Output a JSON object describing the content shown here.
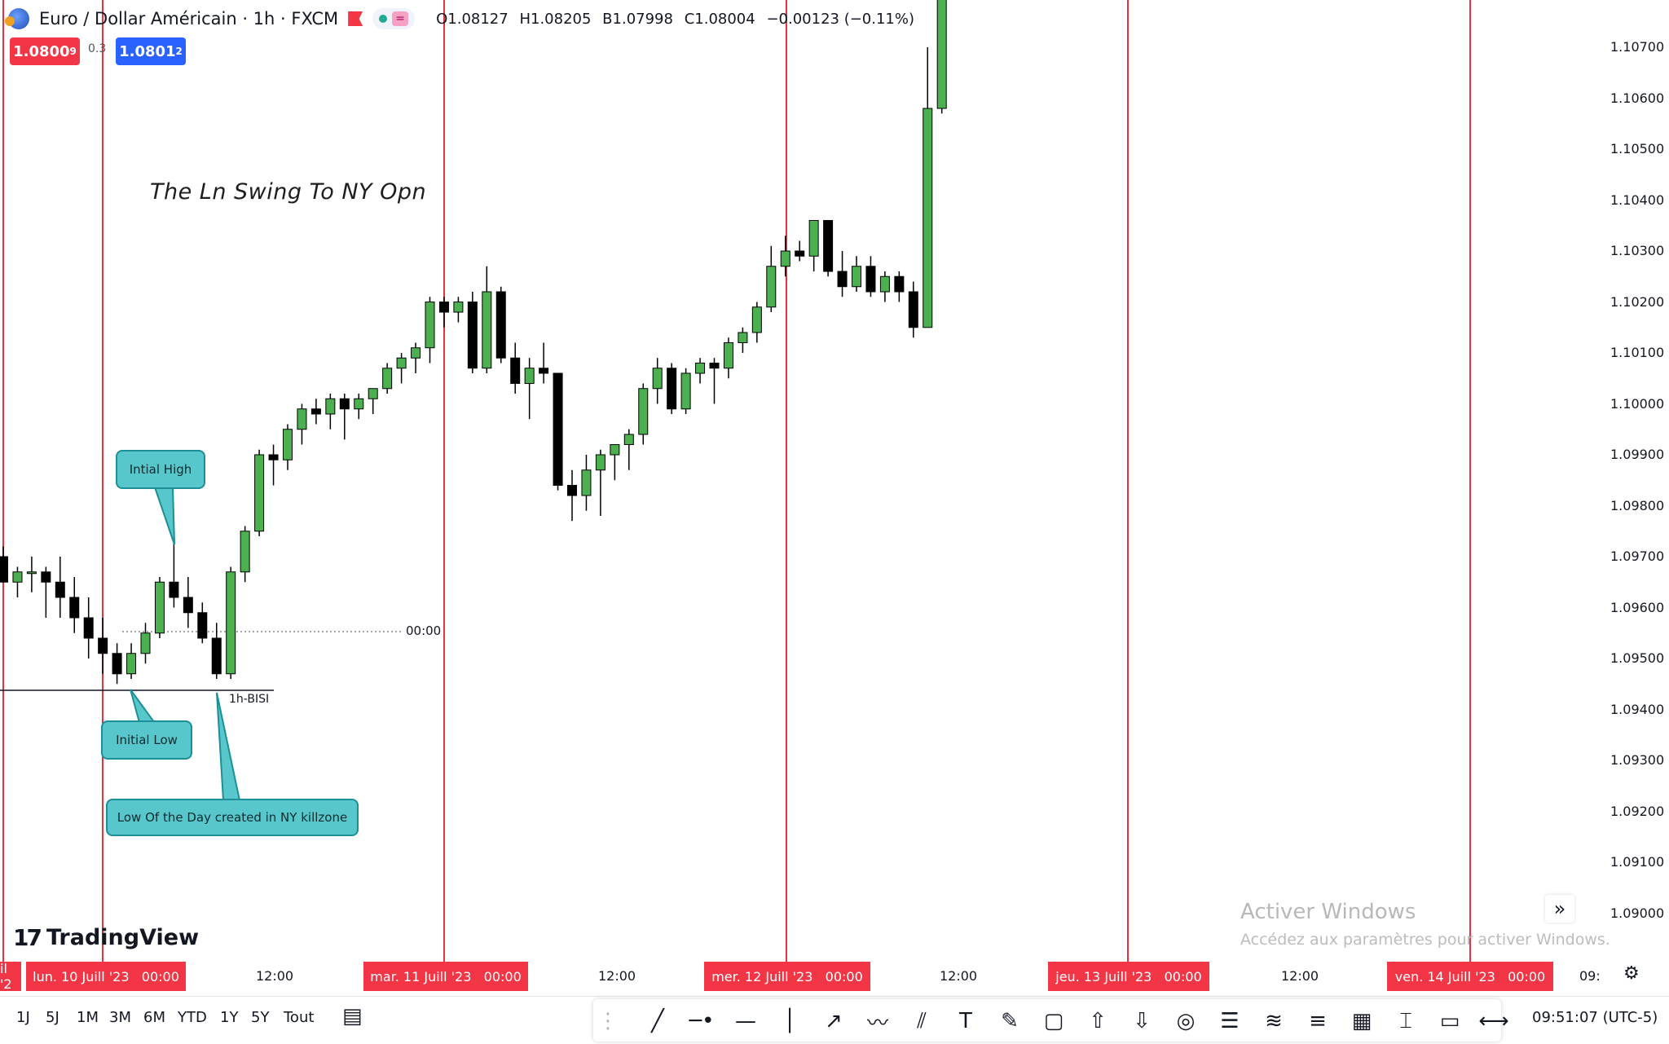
{
  "header": {
    "symbol_title": "Euro / Dollar Américain · 1h · FXCM",
    "status_badge": "=",
    "ohlc": {
      "open": "O1.08127",
      "high": "H1.08205",
      "low": "B1.07998",
      "close": "C1.08004",
      "change": "−0.00123 (−0.11%)"
    },
    "sell_price": "1.0800",
    "sell_price_sup": "9",
    "spread": "0.3",
    "buy_price": "1.0801",
    "buy_price_sup": "2"
  },
  "annotations": {
    "title": "The Ln Swing To NY Opn",
    "initial_high": "Intial High",
    "initial_low": "Initial Low",
    "low_of_day": "Low Of the Day created in NY killzone",
    "bisi_label": "1h-BISI",
    "dotted_time_label": "00:00"
  },
  "price_axis": {
    "ticks": [
      "1.10700",
      "1.10600",
      "1.10500",
      "1.10400",
      "1.10300",
      "1.10200",
      "1.10100",
      "1.10000",
      "1.09900",
      "1.09800",
      "1.09700",
      "1.09600",
      "1.09500",
      "1.09400",
      "1.09300",
      "1.09200",
      "1.09100",
      "1.09000"
    ]
  },
  "time_axis": {
    "tag_0": "il '2",
    "tag_1": "lun. 10 Juill '23   00:00",
    "time_1": "12:00",
    "tag_2": "mar. 11 Juill '23   00:00",
    "time_2": "12:00",
    "tag_3": "mer. 12 Juill '23   00:00",
    "time_3": "12:00",
    "tag_4": "jeu. 13 Juill '23   00:00",
    "time_4": "12:00",
    "tag_5": "ven. 14 Juill '23   00:00",
    "time_5": "09:"
  },
  "range_buttons": [
    "1J",
    "5J",
    "1M",
    "3M",
    "6M",
    "YTD",
    "1Y",
    "5Y",
    "Tout"
  ],
  "clock": "09:51:07 (UTC-5)",
  "branding": {
    "logo_text": "TradingView",
    "logo_mark": "17"
  },
  "watermark": {
    "title": "Activer Windows",
    "subtitle": "Accédez aux paramètres pour activer Windows."
  },
  "toolbar_icons": [
    "grip-icon",
    "trendline-icon",
    "horizontal-ray-icon",
    "horizontal-line-icon",
    "vertical-line-icon",
    "arrow-line-icon",
    "path-icon",
    "parallel-channel-icon",
    "text-icon",
    "brush-icon",
    "rectangle-icon",
    "arrow-up-icon",
    "arrow-down-icon",
    "circle-icon",
    "fib-icon",
    "pitchfork-icon",
    "gann-icon",
    "grid-icon",
    "price-range-icon",
    "callout-icon",
    "date-range-icon"
  ],
  "colors": {
    "bull": "#4caf50",
    "bear": "#000000",
    "session_line": "#e8323f",
    "callout_fill": "#58c7cc",
    "sell": "#f23645",
    "buy": "#2962ff"
  },
  "chart_data": {
    "type": "candlestick",
    "timeframe": "1h",
    "ylim": [
      1.0895,
      1.1075
    ],
    "candles": [
      {
        "o": 1.097,
        "h": 1.0972,
        "l": 1.0965,
        "c": 1.0965
      },
      {
        "o": 1.0965,
        "h": 1.0968,
        "l": 1.0962,
        "c": 1.0967
      },
      {
        "o": 1.0967,
        "h": 1.097,
        "l": 1.0963,
        "c": 1.0967
      },
      {
        "o": 1.0967,
        "h": 1.0968,
        "l": 1.0958,
        "c": 1.0965
      },
      {
        "o": 1.0965,
        "h": 1.097,
        "l": 1.0958,
        "c": 1.0962
      },
      {
        "o": 1.0962,
        "h": 1.0966,
        "l": 1.0955,
        "c": 1.0958
      },
      {
        "o": 1.0958,
        "h": 1.0962,
        "l": 1.095,
        "c": 1.0954
      },
      {
        "o": 1.0954,
        "h": 1.0958,
        "l": 1.0947,
        "c": 1.0951
      },
      {
        "o": 1.0951,
        "h": 1.0953,
        "l": 1.0945,
        "c": 1.0947
      },
      {
        "o": 1.0947,
        "h": 1.0953,
        "l": 1.0946,
        "c": 1.0951
      },
      {
        "o": 1.0951,
        "h": 1.0957,
        "l": 1.0949,
        "c": 1.0955
      },
      {
        "o": 1.0955,
        "h": 1.0966,
        "l": 1.0954,
        "c": 1.0965
      },
      {
        "o": 1.0965,
        "h": 1.0973,
        "l": 1.096,
        "c": 1.0962
      },
      {
        "o": 1.0962,
        "h": 1.0966,
        "l": 1.0956,
        "c": 1.0959
      },
      {
        "o": 1.0959,
        "h": 1.0961,
        "l": 1.0953,
        "c": 1.0954
      },
      {
        "o": 1.0954,
        "h": 1.0957,
        "l": 1.0946,
        "c": 1.0947
      },
      {
        "o": 1.0947,
        "h": 1.0968,
        "l": 1.0946,
        "c": 1.0967
      },
      {
        "o": 1.0967,
        "h": 1.0976,
        "l": 1.0965,
        "c": 1.0975
      },
      {
        "o": 1.0975,
        "h": 1.0991,
        "l": 1.0974,
        "c": 1.099
      },
      {
        "o": 1.099,
        "h": 1.0992,
        "l": 1.0984,
        "c": 1.0989
      },
      {
        "o": 1.0989,
        "h": 1.0996,
        "l": 1.0987,
        "c": 1.0995
      },
      {
        "o": 1.0995,
        "h": 1.1,
        "l": 1.0992,
        "c": 1.0999
      },
      {
        "o": 1.0999,
        "h": 1.1001,
        "l": 1.0996,
        "c": 1.0998
      },
      {
        "o": 1.0998,
        "h": 1.1002,
        "l": 1.0995,
        "c": 1.1001
      },
      {
        "o": 1.1001,
        "h": 1.1002,
        "l": 1.0993,
        "c": 1.0999
      },
      {
        "o": 1.0999,
        "h": 1.1002,
        "l": 1.0997,
        "c": 1.1001
      },
      {
        "o": 1.1001,
        "h": 1.1003,
        "l": 1.0998,
        "c": 1.1003
      },
      {
        "o": 1.1003,
        "h": 1.1008,
        "l": 1.1002,
        "c": 1.1007
      },
      {
        "o": 1.1007,
        "h": 1.101,
        "l": 1.1004,
        "c": 1.1009
      },
      {
        "o": 1.1009,
        "h": 1.1012,
        "l": 1.1006,
        "c": 1.1011
      },
      {
        "o": 1.1011,
        "h": 1.1021,
        "l": 1.1008,
        "c": 1.102
      },
      {
        "o": 1.102,
        "h": 1.1021,
        "l": 1.1015,
        "c": 1.1018
      },
      {
        "o": 1.1018,
        "h": 1.1021,
        "l": 1.1016,
        "c": 1.102
      },
      {
        "o": 1.102,
        "h": 1.1022,
        "l": 1.1006,
        "c": 1.1007
      },
      {
        "o": 1.1007,
        "h": 1.1027,
        "l": 1.1006,
        "c": 1.1022
      },
      {
        "o": 1.1022,
        "h": 1.1023,
        "l": 1.1008,
        "c": 1.1009
      },
      {
        "o": 1.1009,
        "h": 1.1012,
        "l": 1.1002,
        "c": 1.1004
      },
      {
        "o": 1.1004,
        "h": 1.1009,
        "l": 1.0997,
        "c": 1.1007
      },
      {
        "o": 1.1007,
        "h": 1.1012,
        "l": 1.1004,
        "c": 1.1006
      },
      {
        "o": 1.1006,
        "h": 1.1006,
        "l": 1.0983,
        "c": 1.0984
      },
      {
        "o": 1.0984,
        "h": 1.0987,
        "l": 1.0977,
        "c": 1.0982
      },
      {
        "o": 1.0982,
        "h": 1.099,
        "l": 1.0979,
        "c": 1.0987
      },
      {
        "o": 1.0987,
        "h": 1.0991,
        "l": 1.0978,
        "c": 1.099
      },
      {
        "o": 1.099,
        "h": 1.0992,
        "l": 1.0985,
        "c": 1.0992
      },
      {
        "o": 1.0992,
        "h": 1.0995,
        "l": 1.0987,
        "c": 1.0994
      },
      {
        "o": 1.0994,
        "h": 1.1004,
        "l": 1.0992,
        "c": 1.1003
      },
      {
        "o": 1.1003,
        "h": 1.1009,
        "l": 1.1,
        "c": 1.1007
      },
      {
        "o": 1.1007,
        "h": 1.1008,
        "l": 1.0998,
        "c": 1.0999
      },
      {
        "o": 1.0999,
        "h": 1.1007,
        "l": 1.0998,
        "c": 1.1006
      },
      {
        "o": 1.1006,
        "h": 1.1009,
        "l": 1.1004,
        "c": 1.1008
      },
      {
        "o": 1.1008,
        "h": 1.1009,
        "l": 1.1,
        "c": 1.1007
      },
      {
        "o": 1.1007,
        "h": 1.1013,
        "l": 1.1005,
        "c": 1.1012
      },
      {
        "o": 1.1012,
        "h": 1.1015,
        "l": 1.101,
        "c": 1.1014
      },
      {
        "o": 1.1014,
        "h": 1.102,
        "l": 1.1012,
        "c": 1.1019
      },
      {
        "o": 1.1019,
        "h": 1.1031,
        "l": 1.1018,
        "c": 1.1027
      },
      {
        "o": 1.1027,
        "h": 1.1033,
        "l": 1.1025,
        "c": 1.103
      },
      {
        "o": 1.103,
        "h": 1.1032,
        "l": 1.1028,
        "c": 1.1029
      },
      {
        "o": 1.1029,
        "h": 1.1036,
        "l": 1.1026,
        "c": 1.1036
      },
      {
        "o": 1.1036,
        "h": 1.1036,
        "l": 1.1025,
        "c": 1.1026
      },
      {
        "o": 1.1026,
        "h": 1.103,
        "l": 1.1021,
        "c": 1.1023
      },
      {
        "o": 1.1023,
        "h": 1.1029,
        "l": 1.1022,
        "c": 1.1027
      },
      {
        "o": 1.1027,
        "h": 1.1029,
        "l": 1.1021,
        "c": 1.1022
      },
      {
        "o": 1.1022,
        "h": 1.1026,
        "l": 1.102,
        "c": 1.1025
      },
      {
        "o": 1.1025,
        "h": 1.1026,
        "l": 1.102,
        "c": 1.1022
      },
      {
        "o": 1.1022,
        "h": 1.1024,
        "l": 1.1013,
        "c": 1.1015
      },
      {
        "o": 1.1015,
        "h": 1.107,
        "l": 1.1015,
        "c": 1.1058
      },
      {
        "o": 1.1058,
        "h": 1.109,
        "l": 1.1057,
        "c": 1.109
      }
    ],
    "annotations": [
      "The Ln Swing To NY Opn",
      "Intial High",
      "Initial Low",
      "Low Of the Day created in NY killzone",
      "1h-BISI"
    ],
    "grid": false
  }
}
